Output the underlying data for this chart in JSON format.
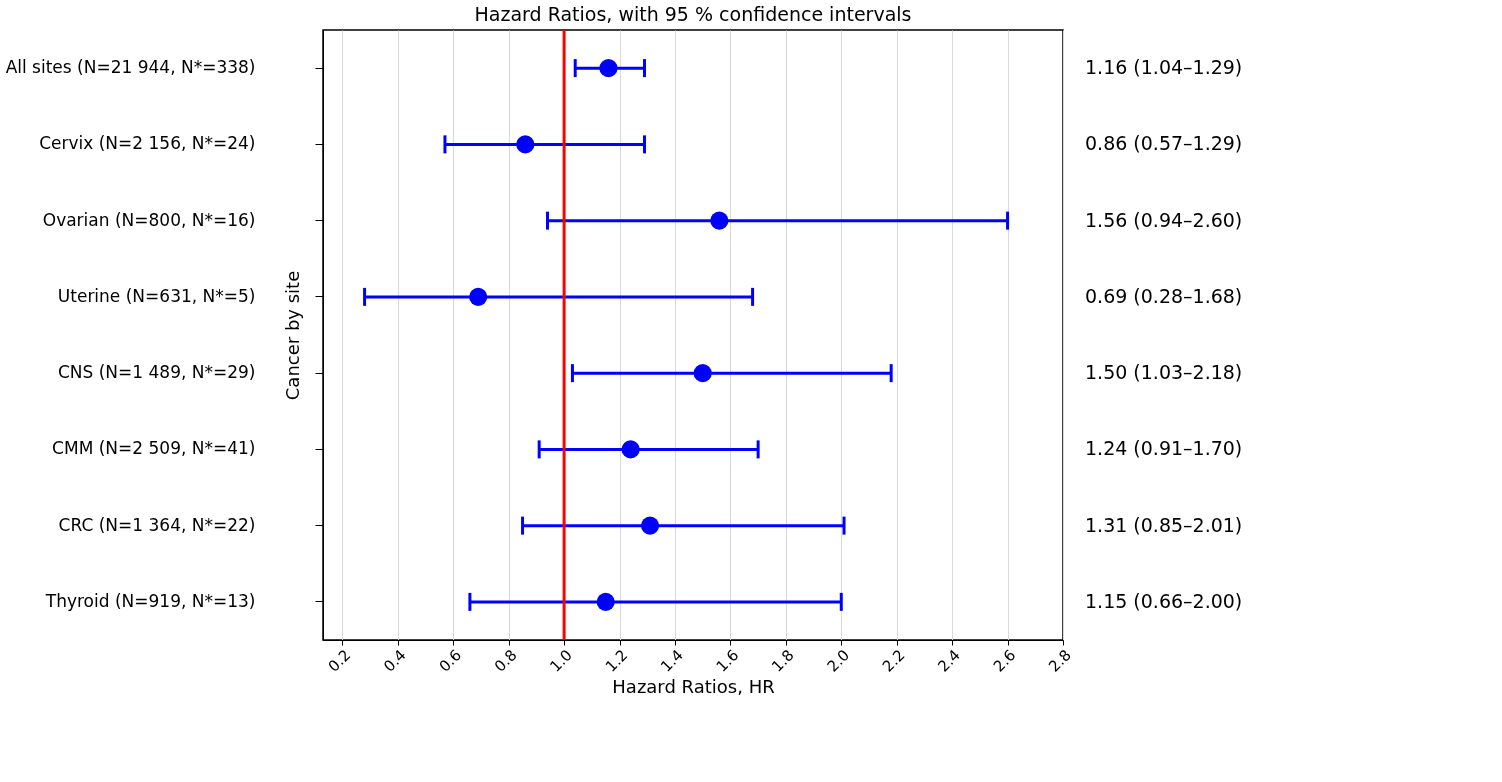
{
  "chart_data": {
    "type": "scatter",
    "title": "Hazard Ratios, with 95 % confidence intervals",
    "xlabel": "Hazard Ratios, HR",
    "ylabel": "Cancer by site",
    "categories": [
      "All sites (N=21 944, N*=338)",
      "Cervix (N=2 156, N*=24)",
      "Ovarian (N=800, N*=16)",
      "Uterine (N=631, N*=5)",
      "CNS (N=1 489, N*=29)",
      "CMM (N=2 509, N*=41)",
      "CRC (N=1 364, N*=22)",
      "Thyroid (N=919, N*=13)"
    ],
    "values": [
      1.16,
      0.86,
      1.56,
      0.69,
      1.5,
      1.24,
      1.31,
      1.15
    ],
    "errors": [
      [
        1.04,
        1.29
      ],
      [
        0.57,
        1.29
      ],
      [
        0.94,
        2.6
      ],
      [
        0.28,
        1.68
      ],
      [
        1.03,
        2.18
      ],
      [
        0.91,
        1.7
      ],
      [
        0.85,
        2.01
      ],
      [
        0.66,
        2.0
      ]
    ],
    "value_labels": [
      "1.16 (1.04–1.29)",
      "0.86 (0.57–1.29)",
      "1.56 (0.94–2.60)",
      "0.69 (0.28–1.68)",
      "1.50 (1.03–2.18)",
      "1.24 (0.91–1.70)",
      "1.31 (0.85–2.01)",
      "1.15 (0.66–2.00)"
    ],
    "color": "#0000ff",
    "marker": "circle",
    "grid": "x",
    "orientation": "horizontal",
    "xlim": [
      0.13,
      2.8
    ],
    "xticks": [
      0.2,
      0.4,
      0.6,
      0.8,
      {
        "value": 1,
        "label": "1.0"
      },
      1.2,
      1.4,
      1.6,
      1.8,
      {
        "value": 2,
        "label": "2.0"
      },
      2.2,
      2.4,
      2.6,
      2.8
    ],
    "ref_lines": [
      {
        "axis": "x",
        "value": 1,
        "color": "#ff0000"
      }
    ]
  }
}
